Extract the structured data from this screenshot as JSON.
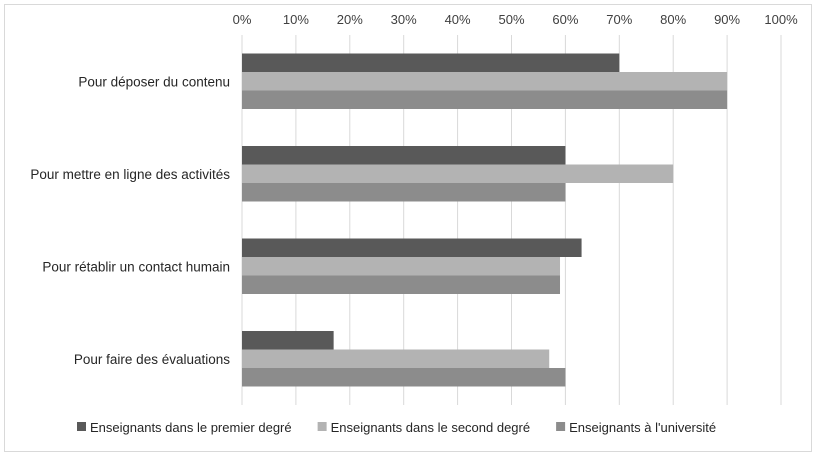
{
  "chart_data": {
    "type": "bar",
    "orientation": "horizontal",
    "categories": [
      "Pour déposer du contenu",
      "Pour mettre en ligne des activités",
      "Pour rétablir un contact humain",
      "Pour faire des évaluations"
    ],
    "series": [
      {
        "name": "Enseignants dans le premier degré",
        "color": "#595959",
        "values": [
          70,
          60,
          63,
          17
        ]
      },
      {
        "name": "Enseignants dans le second degré",
        "color": "#b3b3b3",
        "values": [
          90,
          80,
          59,
          57
        ]
      },
      {
        "name": "Enseignants à l'université",
        "color": "#8c8c8c",
        "values": [
          90,
          60,
          59,
          60
        ]
      }
    ],
    "x_axis": {
      "position": "top",
      "min": 0,
      "max": 100,
      "step": 10,
      "tick_labels": [
        "0%",
        "10%",
        "20%",
        "30%",
        "40%",
        "50%",
        "60%",
        "70%",
        "80%",
        "90%",
        "100%"
      ]
    },
    "title": "",
    "xlabel": "",
    "ylabel": "",
    "grid": true,
    "gridline_color": "#d9d9d9",
    "legend_position": "bottom"
  }
}
